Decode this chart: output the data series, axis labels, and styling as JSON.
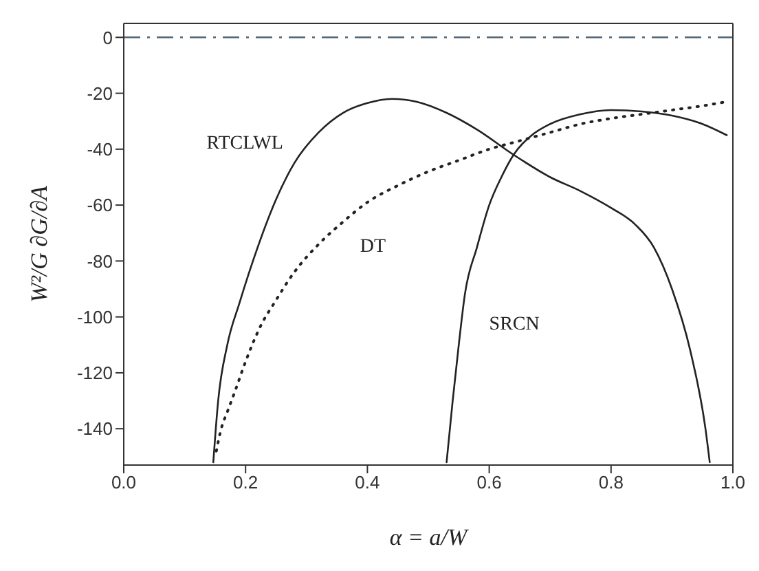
{
  "chart_data": {
    "type": "line",
    "xlabel": "α = a/W",
    "ylabel": "W²/G ∂G/∂A",
    "xlim": [
      0,
      1.0
    ],
    "xticks": [
      {
        "value": 0,
        "label": "0.0"
      },
      {
        "value": 0.2,
        "label": "0.2"
      },
      {
        "value": 0.4,
        "label": "0.4"
      },
      {
        "value": 0.6,
        "label": "0.6"
      },
      {
        "value": 0.8,
        "label": "0.8"
      },
      {
        "value": 1,
        "label": "1.0"
      }
    ],
    "ylim": [
      -153,
      5
    ],
    "yticks": [
      0,
      -20,
      -40,
      -60,
      -80,
      -100,
      -120,
      -140
    ],
    "grid": false,
    "legend": false,
    "marker": "none",
    "series": [
      {
        "name": "RTCLWL",
        "color": "#222222",
        "line_style": "solid",
        "x": [
          0.147,
          0.155,
          0.17,
          0.19,
          0.22,
          0.25,
          0.28,
          0.32,
          0.36,
          0.4,
          0.44,
          0.48,
          0.53,
          0.58,
          0.64,
          0.7,
          0.75,
          0.8,
          0.84,
          0.87,
          0.9,
          0.93,
          0.955,
          0.962
        ],
        "values": [
          -152,
          -130,
          -110,
          -95,
          -75,
          -58,
          -45,
          -34,
          -27,
          -23.5,
          -22,
          -23,
          -27,
          -33,
          -42,
          -50,
          -55,
          -61,
          -67,
          -75,
          -90,
          -112,
          -140,
          -152
        ]
      },
      {
        "name": "DT",
        "color": "#222222",
        "line_style": "dotted",
        "x": [
          0.152,
          0.16,
          0.17,
          0.182,
          0.2,
          0.223,
          0.25,
          0.28,
          0.32,
          0.36,
          0.4,
          0.45,
          0.5,
          0.55,
          0.6,
          0.65,
          0.7,
          0.75,
          0.8,
          0.85,
          0.9,
          0.95,
          0.99
        ],
        "values": [
          -148,
          -140,
          -134,
          -127,
          -116,
          -104,
          -94,
          -84,
          -74,
          -66,
          -59,
          -53,
          -48,
          -44,
          -40,
          -37,
          -34,
          -31,
          -29,
          -27.5,
          -26,
          -24.5,
          -23
        ]
      },
      {
        "name": "SRCN",
        "color": "#222222",
        "line_style": "solid",
        "x": [
          0.53,
          0.54,
          0.55,
          0.56,
          0.58,
          0.6,
          0.62,
          0.64,
          0.67,
          0.7,
          0.75,
          0.8,
          0.85,
          0.9,
          0.95,
          0.99
        ],
        "values": [
          -152,
          -130,
          -110,
          -92,
          -75,
          -60,
          -50,
          -42,
          -35,
          -31,
          -27.5,
          -26,
          -26.5,
          -28,
          -31,
          -35
        ]
      }
    ],
    "ref_lines": [
      {
        "axis": "y",
        "value": 0,
        "color": "#556677",
        "line_style": "dashdot"
      }
    ]
  }
}
